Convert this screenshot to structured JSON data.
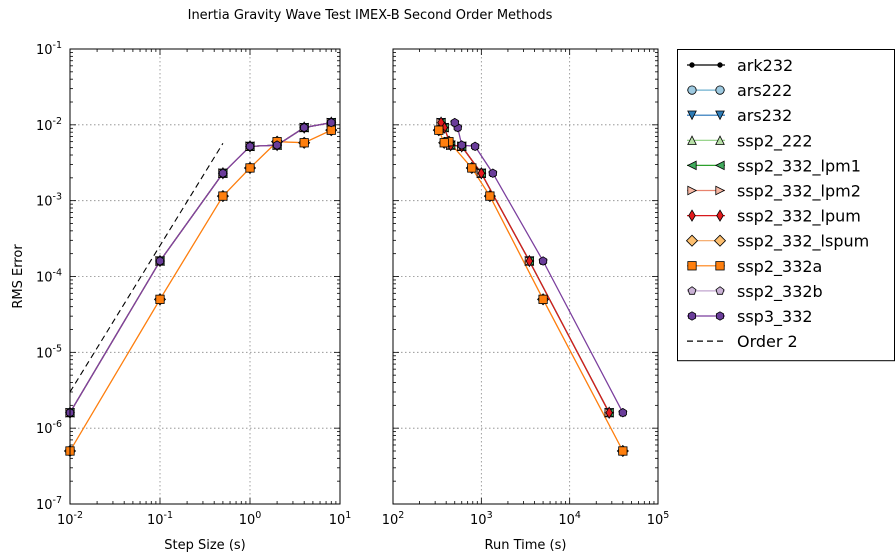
{
  "title": "Inertia Gravity Wave Test IMEX-B Second Order Methods",
  "chart_data": [
    {
      "type": "line",
      "xlabel": "Step Size (s)",
      "ylabel": "RMS Error",
      "xscale": "log",
      "yscale": "log",
      "xlim": [
        0.01,
        10
      ],
      "ylim": [
        1e-07,
        0.1
      ],
      "x_ticks": [
        0.01,
        0.1,
        1,
        10
      ],
      "x_tick_labels": [
        {
          "b": "10",
          "e": "-2"
        },
        {
          "b": "10",
          "e": "-1"
        },
        {
          "b": "10",
          "e": "0"
        },
        {
          "b": "10",
          "e": "1"
        }
      ],
      "y_ticks": [
        1e-07,
        1e-06,
        1e-05,
        0.0001,
        0.001,
        0.01,
        0.1
      ],
      "y_tick_labels": [
        {
          "b": "10",
          "e": "-7"
        },
        {
          "b": "10",
          "e": "-6"
        },
        {
          "b": "10",
          "e": "-5"
        },
        {
          "b": "10",
          "e": "-4"
        },
        {
          "b": "10",
          "e": "-3"
        },
        {
          "b": "10",
          "e": "-2"
        },
        {
          "b": "10",
          "e": "-1"
        }
      ],
      "grid": true,
      "series": [
        {
          "name": "ark232",
          "marker": "dot",
          "color": "#000000",
          "fill": "#000000",
          "x": [
            0.01,
            0.1,
            0.5,
            1,
            2,
            4,
            8
          ],
          "y": [
            1.6e-06,
            0.00016,
            0.0023,
            0.0052,
            0.0054,
            0.0092,
            0.0107
          ]
        },
        {
          "name": "ars222",
          "marker": "circle",
          "color": "#6fb0cf",
          "fill": "#9ecae1",
          "x": [
            0.01,
            0.1,
            0.5,
            1,
            2,
            4,
            8
          ],
          "y": [
            1.6e-06,
            0.00016,
            0.0023,
            0.0052,
            0.0054,
            0.0092,
            0.0107
          ]
        },
        {
          "name": "ars232",
          "marker": "tri-down",
          "color": "#1f6fb5",
          "fill": "#2c7bb6",
          "x": [
            0.01,
            0.1,
            0.5,
            1,
            2,
            4,
            8
          ],
          "y": [
            1.6e-06,
            0.00016,
            0.0023,
            0.0052,
            0.0054,
            0.0092,
            0.0107
          ]
        },
        {
          "name": "ssp2_222",
          "marker": "tri-up",
          "color": "#8ccf7e",
          "fill": "#b8e0a8",
          "x": [
            0.01,
            0.1,
            0.5,
            1,
            2,
            4,
            8
          ],
          "y": [
            1.6e-06,
            0.00016,
            0.0023,
            0.0052,
            0.0054,
            0.0092,
            0.0107
          ]
        },
        {
          "name": "ssp2_332_lpm1",
          "marker": "tri-left",
          "color": "#2ca02c",
          "fill": "#41ab5d",
          "x": [
            0.01,
            0.1,
            0.5,
            1,
            2,
            4,
            8
          ],
          "y": [
            1.6e-06,
            0.00016,
            0.0023,
            0.0052,
            0.0054,
            0.0092,
            0.0107
          ]
        },
        {
          "name": "ssp2_332_lpm2",
          "marker": "tri-right",
          "color": "#e8836e",
          "fill": "#f7b7a3",
          "x": [
            0.01,
            0.1,
            0.5,
            1,
            2,
            4,
            8
          ],
          "y": [
            1.6e-06,
            0.00016,
            0.0023,
            0.0052,
            0.0054,
            0.0092,
            0.0107
          ]
        },
        {
          "name": "ssp2_332_lpum",
          "marker": "thin-diamond",
          "color": "#d7191c",
          "fill": "#e31a1c",
          "x": [
            0.01,
            0.1,
            0.5,
            1,
            2,
            4,
            8
          ],
          "y": [
            1.6e-06,
            0.00016,
            0.0023,
            0.0052,
            0.0054,
            0.0092,
            0.0107
          ]
        },
        {
          "name": "ssp2_332_lspum",
          "marker": "diamond",
          "color": "#f4a460",
          "fill": "#fdbf6f",
          "x": [
            0.01,
            0.1,
            0.5,
            1,
            2,
            4,
            8
          ],
          "y": [
            5e-07,
            5e-05,
            0.00115,
            0.0027,
            0.006,
            0.0058,
            0.0085
          ]
        },
        {
          "name": "ssp2_332a",
          "marker": "square",
          "color": "#ff7f0e",
          "fill": "#ff7f0e",
          "x": [
            0.01,
            0.1,
            0.5,
            1,
            2,
            4,
            8
          ],
          "y": [
            5e-07,
            5e-05,
            0.00115,
            0.0027,
            0.006,
            0.0058,
            0.0085
          ]
        },
        {
          "name": "ssp2_332b",
          "marker": "pentagon",
          "color": "#c2a5cf",
          "fill": "#cab2d6",
          "x": [
            0.01,
            0.1,
            0.5,
            1,
            2,
            4,
            8
          ],
          "y": [
            1.6e-06,
            0.00016,
            0.0023,
            0.0052,
            0.0054,
            0.0092,
            0.0107
          ]
        },
        {
          "name": "ssp3_332",
          "marker": "hexagon",
          "color": "#7b3f9e",
          "fill": "#6a3d9a",
          "x": [
            0.01,
            0.1,
            0.5,
            1,
            2,
            4,
            8
          ],
          "y": [
            1.6e-06,
            0.00016,
            0.0023,
            0.0052,
            0.0054,
            0.0092,
            0.0107
          ]
        },
        {
          "name": "Order 2",
          "marker": "none",
          "color": "#000000",
          "dashed": true,
          "x": [
            0.01,
            0.5
          ],
          "y": [
            3e-06,
            0.0057
          ]
        }
      ]
    },
    {
      "type": "line",
      "xlabel": "Run Time (s)",
      "ylabel": "",
      "xscale": "log",
      "yscale": "log",
      "xlim": [
        100,
        100000
      ],
      "ylim": [
        1e-07,
        0.1
      ],
      "x_ticks": [
        100,
        1000,
        10000,
        100000
      ],
      "x_tick_labels": [
        {
          "b": "10",
          "e": "2"
        },
        {
          "b": "10",
          "e": "3"
        },
        {
          "b": "10",
          "e": "4"
        },
        {
          "b": "10",
          "e": "5"
        }
      ],
      "y_ticks": [
        1e-07,
        1e-06,
        1e-05,
        0.0001,
        0.001,
        0.01,
        0.1
      ],
      "grid": true,
      "series": [
        {
          "name": "ark232",
          "x": [
            28000,
            3500,
            1000,
            600,
            450,
            380,
            350
          ],
          "y": [
            1.6e-06,
            0.00016,
            0.0023,
            0.0052,
            0.0054,
            0.0092,
            0.0107
          ]
        },
        {
          "name": "ars222",
          "x": [
            28000,
            3500,
            1000,
            600,
            450,
            380,
            350
          ],
          "y": [
            1.6e-06,
            0.00016,
            0.0023,
            0.0052,
            0.0054,
            0.0092,
            0.0107
          ]
        },
        {
          "name": "ars232",
          "x": [
            28000,
            3500,
            1000,
            600,
            450,
            380,
            350
          ],
          "y": [
            1.6e-06,
            0.00016,
            0.0023,
            0.0052,
            0.0054,
            0.0092,
            0.0107
          ]
        },
        {
          "name": "ssp2_222",
          "x": [
            28000,
            3500,
            1000,
            600,
            450,
            380,
            350
          ],
          "y": [
            1.6e-06,
            0.00016,
            0.0023,
            0.0052,
            0.0054,
            0.0092,
            0.0107
          ]
        },
        {
          "name": "ssp2_332_lpm1",
          "x": [
            28000,
            3500,
            1000,
            600,
            450,
            380,
            350
          ],
          "y": [
            1.6e-06,
            0.00016,
            0.0023,
            0.0052,
            0.0054,
            0.0092,
            0.0107
          ]
        },
        {
          "name": "ssp2_332_lpm2",
          "x": [
            28000,
            3500,
            1000,
            600,
            450,
            380,
            350
          ],
          "y": [
            1.6e-06,
            0.00016,
            0.0023,
            0.0052,
            0.0054,
            0.0092,
            0.0107
          ]
        },
        {
          "name": "ssp2_332_lpum",
          "x": [
            28000,
            3500,
            1000,
            600,
            450,
            380,
            350
          ],
          "y": [
            1.6e-06,
            0.00016,
            0.0023,
            0.0052,
            0.0054,
            0.0092,
            0.0107
          ]
        },
        {
          "name": "ssp2_332_lspum",
          "x": [
            40000,
            5000,
            1250,
            780,
            430,
            380,
            330
          ],
          "y": [
            5e-07,
            5e-05,
            0.00115,
            0.0027,
            0.006,
            0.0058,
            0.0085
          ]
        },
        {
          "name": "ssp2_332a",
          "x": [
            40000,
            5000,
            1250,
            780,
            430,
            380,
            330
          ],
          "y": [
            5e-07,
            5e-05,
            0.00115,
            0.0027,
            0.006,
            0.0058,
            0.0085
          ]
        },
        {
          "name": "ssp2_332b",
          "x": [
            40000,
            5000,
            1350,
            850,
            600,
            540,
            500
          ],
          "y": [
            1.6e-06,
            0.00016,
            0.0023,
            0.0052,
            0.0054,
            0.0092,
            0.0107
          ]
        },
        {
          "name": "ssp3_332",
          "x": [
            40000,
            5000,
            1350,
            850,
            600,
            540,
            500
          ],
          "y": [
            1.6e-06,
            0.00016,
            0.0023,
            0.0052,
            0.0054,
            0.0092,
            0.0107
          ]
        }
      ]
    }
  ],
  "legend": {
    "placement": "outside-right"
  }
}
